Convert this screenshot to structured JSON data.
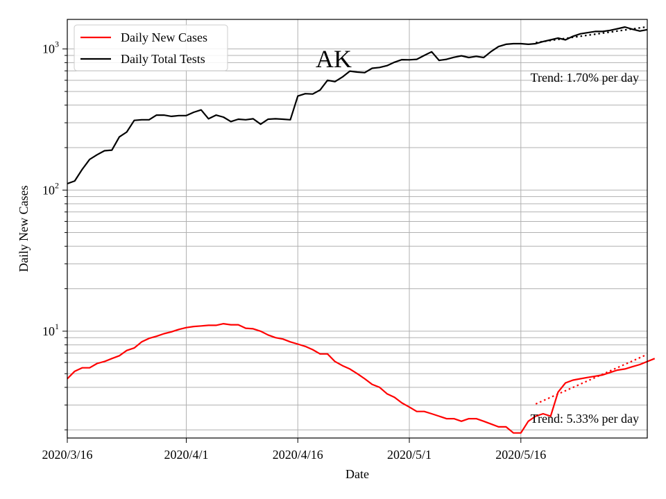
{
  "chart_data": {
    "type": "line",
    "title": "AK",
    "xlabel": "Date",
    "ylabel": "Daily New Cases",
    "yscale": "log",
    "ylim": [
      1.75,
      1620
    ],
    "xlim": [
      "2020-03-16",
      "2020-06-02"
    ],
    "x_ticks": [
      "2020/3/16",
      "2020/4/1",
      "2020/4/16",
      "2020/5/1",
      "2020/5/16"
    ],
    "y_tick_labels": [
      {
        "base": "10",
        "exp": "1",
        "value": 10
      },
      {
        "base": "10",
        "exp": "2",
        "value": 100
      },
      {
        "base": "10",
        "exp": "3",
        "value": 1000
      }
    ],
    "grid": true,
    "legend": {
      "placement": "top-left",
      "entries": [
        {
          "label": "Daily New Cases",
          "color": "#ff0000"
        },
        {
          "label": "Daily Total Tests",
          "color": "#000000"
        }
      ]
    },
    "start_date": "2020-03-16",
    "series": [
      {
        "name": "Daily New Cases",
        "color": "#ff0000",
        "values": [
          4.6,
          5.2,
          5.5,
          5.5,
          5.9,
          6.1,
          6.4,
          6.7,
          7.3,
          7.6,
          8.4,
          8.9,
          9.2,
          9.6,
          9.9,
          10.3,
          10.6,
          10.8,
          10.9,
          11.0,
          11.0,
          11.3,
          11.1,
          11.1,
          10.5,
          10.4,
          10.0,
          9.4,
          9.0,
          8.8,
          8.4,
          8.1,
          7.8,
          7.4,
          6.9,
          6.9,
          6.1,
          5.7,
          5.4,
          5.0,
          4.6,
          4.2,
          4.0,
          3.6,
          3.4,
          3.1,
          2.9,
          2.7,
          2.7,
          2.6,
          2.5,
          2.4,
          2.4,
          2.3,
          2.4,
          2.4,
          2.3,
          2.2,
          2.1,
          2.1,
          1.9,
          1.9,
          2.3,
          2.5,
          2.6,
          2.5,
          3.7,
          4.3,
          4.5,
          4.6,
          4.7,
          4.8,
          4.9,
          5.1,
          5.3,
          5.4,
          5.6,
          5.8,
          6.1,
          6.4
        ]
      },
      {
        "name": "Daily Total Tests",
        "color": "#000000",
        "values": [
          111,
          116,
          140,
          165,
          178,
          190,
          192,
          238,
          258,
          312,
          315,
          315,
          340,
          340,
          333,
          337,
          337,
          356,
          370,
          320,
          340,
          329,
          306,
          318,
          315,
          320,
          293,
          318,
          320,
          318,
          315,
          464,
          482,
          479,
          512,
          600,
          587,
          633,
          697,
          686,
          680,
          730,
          740,
          762,
          805,
          840,
          838,
          845,
          900,
          955,
          830,
          845,
          873,
          895,
          870,
          887,
          870,
          960,
          1040,
          1080,
          1090,
          1090,
          1080,
          1090,
          1130,
          1160,
          1195,
          1160,
          1230,
          1280,
          1305,
          1330,
          1330,
          1355,
          1390,
          1430,
          1380,
          1340,
          1370
        ]
      }
    ],
    "trends": [
      {
        "series": "Daily New Cases",
        "label": "Trend: 5.33% per day",
        "start_day": 63,
        "start_value": 3.05,
        "end_value": 6.85,
        "color": "#ff0000"
      },
      {
        "series": "Daily Total Tests",
        "label": "Trend: 1.70% per day",
        "start_day": 63,
        "start_value": 1110,
        "end_value": 1435,
        "color": "#000000"
      }
    ]
  }
}
